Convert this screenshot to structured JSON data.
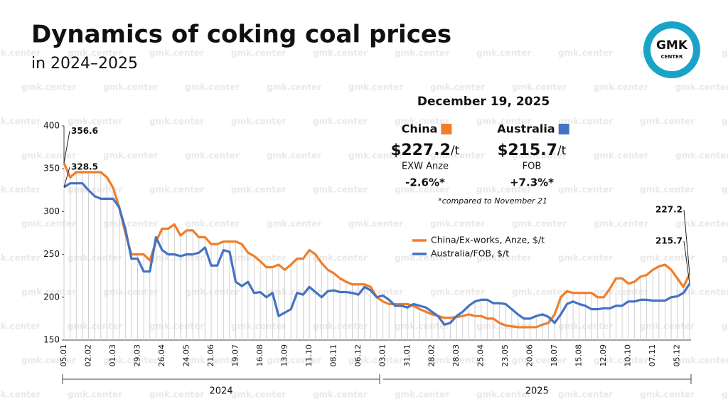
{
  "chart_data": {
    "type": "line",
    "title": "Dynamics of coking coal prices",
    "subtitle": "in 2024–2025",
    "watermark": "gmk.center",
    "logo": {
      "top": "GMK",
      "bottom": "CENTER"
    },
    "categories": [
      "05.01",
      null,
      null,
      null,
      "02.02",
      null,
      null,
      null,
      "01.03",
      null,
      null,
      null,
      "29.03",
      null,
      null,
      null,
      "26.04",
      null,
      null,
      null,
      "24.05",
      null,
      null,
      null,
      "21.06",
      null,
      null,
      null,
      "19.07",
      null,
      null,
      null,
      "16.08",
      null,
      null,
      null,
      "13.09",
      null,
      null,
      null,
      "11.10",
      null,
      null,
      null,
      "08.11",
      null,
      null,
      null,
      "06.12",
      null,
      null,
      null,
      "03.01",
      null,
      null,
      null,
      "31.01",
      null,
      null,
      null,
      "28.02",
      null,
      null,
      null,
      "28.03",
      null,
      null,
      null,
      "25.04",
      null,
      null,
      null,
      "23.05",
      null,
      null,
      null,
      "20.06",
      null,
      null,
      null,
      "18.07",
      null,
      null,
      null,
      "15.08",
      null,
      null,
      null,
      "12.09",
      null,
      null,
      null,
      "10.10",
      null,
      null,
      null,
      "07.11",
      null,
      null,
      null,
      "05.12",
      null,
      null
    ],
    "year_groups": [
      {
        "label": "2024",
        "first": 0,
        "last": 51
      },
      {
        "label": "2025",
        "first": 52,
        "last": 102
      }
    ],
    "series": [
      {
        "name": "China/Ex-works, Anze, $/t",
        "color": "#f07d2a",
        "values": [
          356.6,
          340,
          346,
          346,
          346,
          346,
          346,
          340,
          328,
          305,
          275,
          250,
          250,
          250,
          243,
          265,
          280,
          280,
          285,
          272,
          278,
          278,
          270,
          270,
          262,
          262,
          265,
          265,
          265,
          262,
          252,
          248,
          242,
          235,
          235,
          238,
          232,
          238,
          245,
          245,
          255,
          250,
          240,
          232,
          228,
          222,
          218,
          215,
          215,
          215,
          212,
          200,
          195,
          192,
          192,
          192,
          192,
          190,
          186,
          183,
          180,
          178,
          176,
          176,
          177,
          178,
          180,
          178,
          178,
          175,
          175,
          170,
          167,
          166,
          165,
          165,
          165,
          165,
          168,
          170,
          180,
          200,
          207,
          205,
          205,
          205,
          205,
          200,
          200,
          210,
          222,
          222,
          216,
          218,
          224,
          226,
          232,
          236,
          238,
          232,
          222,
          212,
          227.2
        ]
      },
      {
        "name": "Australia/FOB, $/t",
        "color": "#4472c4",
        "values": [
          328.5,
          333,
          333,
          333,
          325,
          318,
          315,
          315,
          315,
          305,
          280,
          245,
          245,
          230,
          230,
          270,
          255,
          250,
          250,
          248,
          250,
          250,
          252,
          258,
          237,
          237,
          255,
          253,
          218,
          213,
          218,
          205,
          206,
          200,
          205,
          178,
          182,
          186,
          205,
          203,
          212,
          206,
          200,
          207,
          208,
          206,
          206,
          205,
          203,
          212,
          208,
          200,
          202,
          197,
          190,
          190,
          188,
          192,
          190,
          188,
          183,
          178,
          168,
          170,
          178,
          183,
          190,
          195,
          197,
          197,
          193,
          193,
          192,
          186,
          180,
          175,
          175,
          178,
          180,
          177,
          170,
          180,
          192,
          195,
          192,
          190,
          186,
          186,
          187,
          187,
          190,
          190,
          195,
          195,
          197,
          197,
          196,
          196,
          196,
          200,
          201,
          205,
          215.7
        ]
      }
    ],
    "ylim": [
      150,
      400
    ],
    "yticks": [
      150,
      200,
      250,
      300,
      350,
      400
    ],
    "grid": false,
    "legend": "center-right",
    "info": {
      "date": "December 19, 2025",
      "items": [
        {
          "name": "China",
          "prefix": "$",
          "price": 227.2,
          "unit": "/t",
          "basis": "EXW Anze",
          "change": "-2.6%*"
        },
        {
          "name": "Australia",
          "prefix": "$",
          "price": 215.7,
          "unit": "/t",
          "basis": "FOB",
          "change": "+7.3%*"
        }
      ],
      "footnote": "*compared to November 21"
    }
  }
}
